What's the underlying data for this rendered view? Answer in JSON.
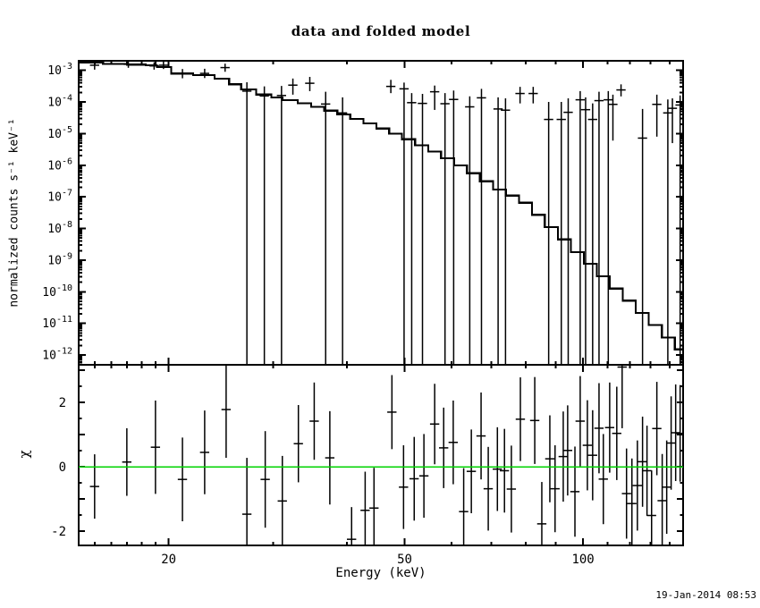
{
  "title": "data and folded model",
  "timestamp": "19-Jan-2014 08:53",
  "chart_data": {
    "type": "scatter",
    "title": "data and folded model",
    "subtitle": "",
    "legend": "none",
    "grid": false,
    "x_axis": {
      "label": "Energy (keV)",
      "scale": "log",
      "min": 14.1,
      "max": 147.5,
      "major_ticks": [
        {
          "value": 20,
          "label": "20"
        },
        {
          "value": 50,
          "label": "50"
        },
        {
          "value": 100,
          "label": "100"
        }
      ],
      "minor_ticks": [
        15,
        16,
        17,
        18,
        19,
        30,
        40,
        60,
        70,
        80,
        90,
        110,
        120,
        130,
        140
      ]
    },
    "top_panel": {
      "ylabel": "normalized counts s⁻¹ keV⁻¹",
      "yscale": "log",
      "ymin": 4.9e-13,
      "ymax": 0.002,
      "ytick_labels": [
        {
          "value": 0.001,
          "label": "10^-3"
        },
        {
          "value": 0.0001,
          "label": "10^-4"
        },
        {
          "value": 1e-05,
          "label": "10^-5"
        },
        {
          "value": 1e-06,
          "label": "10^-6"
        },
        {
          "value": 1e-07,
          "label": "10^-7"
        },
        {
          "value": 1e-08,
          "label": "10^-8"
        },
        {
          "value": 1e-09,
          "label": "10^-9"
        },
        {
          "value": 1e-10,
          "label": "10^-10"
        },
        {
          "value": 1e-11,
          "label": "10^-11"
        },
        {
          "value": 1e-12,
          "label": "10^-12"
        }
      ],
      "model_color": "#000000",
      "model_steps": [
        [
          14.1,
          0.00175
        ],
        [
          15.5,
          0.0016
        ],
        [
          17.0,
          0.00152
        ],
        [
          18.3,
          0.00145
        ],
        [
          19.1,
          0.00128
        ],
        [
          20.2,
          0.00079
        ],
        [
          22.0,
          0.0007
        ],
        [
          23.9,
          0.00054
        ],
        [
          25.3,
          0.00036
        ],
        [
          26.5,
          0.00025
        ],
        [
          28.1,
          0.000172
        ],
        [
          29.8,
          0.00014
        ],
        [
          31.1,
          0.000115
        ],
        [
          33.0,
          9e-05
        ],
        [
          34.8,
          7e-05
        ],
        [
          36.6,
          5.3e-05
        ],
        [
          38.5,
          4e-05
        ],
        [
          40.5,
          2.9e-05
        ],
        [
          42.6,
          2.1e-05
        ],
        [
          44.8,
          1.45e-05
        ],
        [
          47.1,
          1e-05
        ],
        [
          49.5,
          6.6e-06
        ],
        [
          52.1,
          4.3e-06
        ],
        [
          54.8,
          2.7e-06
        ],
        [
          57.6,
          1.65e-06
        ],
        [
          60.6,
          9.8e-07
        ],
        [
          63.7,
          5.6e-07
        ],
        [
          67.0,
          3.1e-07
        ],
        [
          70.5,
          1.7e-07
        ],
        [
          74.1,
          1.1e-07
        ],
        [
          78.0,
          6.5e-08
        ],
        [
          82.0,
          2.7e-08
        ],
        [
          86.2,
          1.1e-08
        ],
        [
          90.7,
          4.5e-09
        ],
        [
          95.4,
          1.8e-09
        ],
        [
          100.3,
          7.6e-10
        ],
        [
          105.5,
          3.1e-10
        ],
        [
          111.0,
          1.26e-10
        ],
        [
          116.7,
          5.2e-11
        ],
        [
          122.7,
          2.15e-11
        ],
        [
          129.1,
          8.8e-12
        ],
        [
          135.8,
          3.6e-12
        ],
        [
          142.8,
          1.5e-12
        ],
        [
          147.5,
          8.3e-13
        ]
      ],
      "data_points_note": "fields: energy_keV, value, err_low(null=extends to panel bottom), err_high",
      "data_points": [
        [
          15.0,
          0.00145,
          0.00105,
          0.00195
        ],
        [
          17.1,
          0.00155,
          0.0012,
          0.00198
        ],
        [
          18.9,
          0.00138,
          0.00105,
          0.0018
        ],
        [
          19.6,
          0.00145,
          0.0011,
          0.0019
        ],
        [
          21.1,
          0.00079,
          0.00056,
          0.0011
        ],
        [
          23.0,
          0.0008,
          0.00057,
          0.00112
        ],
        [
          24.9,
          0.00122,
          0.0009,
          0.00162
        ],
        [
          27.1,
          0.00022,
          null,
          0.00042
        ],
        [
          29.0,
          0.000155,
          null,
          0.00031
        ],
        [
          31.0,
          0.00016,
          null,
          0.00032
        ],
        [
          32.4,
          0.00034,
          0.00017,
          0.00055
        ],
        [
          34.6,
          0.00039,
          0.00022,
          0.00062
        ],
        [
          36.8,
          8.6e-05,
          null,
          0.00021
        ],
        [
          39.3,
          4.5e-05,
          null,
          0.00014
        ],
        [
          47.4,
          0.00031,
          0.00019,
          0.0005
        ],
        [
          49.9,
          0.00026,
          null,
          0.00041
        ],
        [
          51.4,
          9.5e-05,
          null,
          0.00019
        ],
        [
          53.6,
          9e-05,
          null,
          0.00018
        ],
        [
          56.2,
          0.00021,
          5.6e-05,
          0.00033
        ],
        [
          58.5,
          8.8e-05,
          null,
          0.00019
        ],
        [
          60.5,
          0.00012,
          null,
          0.00023
        ],
        [
          64.4,
          7e-05,
          null,
          0.00015
        ],
        [
          67.4,
          0.000135,
          null,
          0.00026
        ],
        [
          71.9,
          6e-05,
          null,
          0.00014
        ],
        [
          74.0,
          5.5e-05,
          null,
          0.00013
        ],
        [
          78.3,
          0.000185,
          9e-05,
          0.0003
        ],
        [
          82.4,
          0.000185,
          9e-05,
          0.0003
        ],
        [
          87.5,
          2.8e-05,
          null,
          0.0001
        ],
        [
          91.9,
          2.8e-05,
          null,
          0.0001
        ],
        [
          94.4,
          4.7e-05,
          null,
          0.00013
        ],
        [
          98.9,
          0.000117,
          null,
          0.00022
        ],
        [
          101.0,
          5.7e-05,
          null,
          0.00014
        ],
        [
          103.8,
          2.8e-05,
          null,
          9e-05
        ],
        [
          106.4,
          0.00011,
          null,
          0.00021
        ],
        [
          110.3,
          0.000117,
          null,
          0.00022
        ],
        [
          112.3,
          8.4e-05,
          6e-06,
          0.00017
        ],
        [
          115.9,
          0.00024,
          0.00015,
          0.00036
        ],
        [
          126.0,
          7.2e-06,
          null,
          6e-05
        ],
        [
          133.2,
          8.4e-05,
          8e-06,
          0.00017
        ],
        [
          139.0,
          4.5e-05,
          null,
          0.00012
        ],
        [
          141.5,
          6.3e-05,
          5e-06,
          0.00013
        ],
        [
          145.8,
          8e-05,
          null,
          0.00016
        ]
      ]
    },
    "bottom_panel": {
      "ylabel": "χ",
      "yscale": "linear",
      "ymin": -2.44,
      "ymax": 3.17,
      "major_ticks": [
        {
          "value": -2,
          "label": "-2"
        },
        {
          "value": 0,
          "label": "0"
        },
        {
          "value": 2,
          "label": "2"
        }
      ],
      "integer_ticks": [
        -2,
        -1,
        0,
        1,
        2,
        3
      ],
      "minor_tick_step": 0.5,
      "zero_line_color": "#00d300",
      "points_note": "fields: energy_keV, chi, err_down, err_up",
      "points": [
        [
          15.0,
          -0.61,
          1.0,
          1.0
        ],
        [
          17.0,
          0.15,
          1.05,
          1.05
        ],
        [
          19.0,
          0.61,
          1.45,
          1.45
        ],
        [
          21.1,
          -0.39,
          1.3,
          1.3
        ],
        [
          23.0,
          0.45,
          1.3,
          1.3
        ],
        [
          25.0,
          1.78,
          1.5,
          1.55
        ],
        [
          27.1,
          -1.47,
          1.35,
          1.75
        ],
        [
          29.1,
          -0.39,
          1.5,
          1.5
        ],
        [
          31.1,
          -1.06,
          1.4,
          1.4
        ],
        [
          33.1,
          0.72,
          1.2,
          1.2
        ],
        [
          35.2,
          1.42,
          1.2,
          1.2
        ],
        [
          37.4,
          0.28,
          1.45,
          1.45
        ],
        [
          40.7,
          -2.25,
          1.0,
          1.0
        ],
        [
          42.9,
          -1.35,
          1.2,
          1.2
        ],
        [
          44.4,
          -1.28,
          1.25,
          1.25
        ],
        [
          47.6,
          1.7,
          1.15,
          1.15
        ],
        [
          49.8,
          -0.63,
          1.3,
          1.3
        ],
        [
          51.9,
          -0.37,
          1.3,
          1.3
        ],
        [
          53.9,
          -0.28,
          1.3,
          1.3
        ],
        [
          56.2,
          1.33,
          1.25,
          1.25
        ],
        [
          58.2,
          0.59,
          1.25,
          1.25
        ],
        [
          60.4,
          0.76,
          1.3,
          1.3
        ],
        [
          62.9,
          -1.39,
          1.35,
          1.35
        ],
        [
          64.8,
          -0.14,
          1.3,
          1.3
        ],
        [
          67.3,
          0.96,
          1.35,
          1.35
        ],
        [
          69.2,
          -0.68,
          1.3,
          1.3
        ],
        [
          71.7,
          -0.07,
          1.3,
          1.3
        ],
        [
          73.7,
          -0.12,
          1.3,
          1.3
        ],
        [
          75.7,
          -0.69,
          1.35,
          1.35
        ],
        [
          78.4,
          1.48,
          1.3,
          1.3
        ],
        [
          82.9,
          1.44,
          1.35,
          1.35
        ],
        [
          85.2,
          -1.77,
          1.3,
          1.3
        ],
        [
          87.9,
          0.25,
          1.35,
          1.35
        ],
        [
          89.7,
          -0.68,
          1.35,
          1.35
        ],
        [
          92.6,
          0.32,
          1.4,
          1.4
        ],
        [
          94.2,
          0.51,
          1.4,
          1.4
        ],
        [
          96.9,
          -0.77,
          1.4,
          1.4
        ],
        [
          98.9,
          1.42,
          1.4,
          1.4
        ],
        [
          101.7,
          0.67,
          1.4,
          1.4
        ],
        [
          103.8,
          0.36,
          1.4,
          1.4
        ],
        [
          106.4,
          1.2,
          1.4,
          1.4
        ],
        [
          108.2,
          -0.38,
          1.4,
          1.4
        ],
        [
          110.9,
          1.22,
          1.4,
          1.4
        ],
        [
          114.0,
          1.04,
          1.45,
          1.45
        ],
        [
          116.4,
          3.1,
          1.9,
          1.0
        ],
        [
          118.4,
          -0.83,
          1.4,
          1.4
        ],
        [
          120.9,
          -1.14,
          1.4,
          1.4
        ],
        [
          123.5,
          -0.58,
          1.4,
          1.4
        ],
        [
          126.0,
          0.16,
          1.4,
          1.4
        ],
        [
          128.2,
          -0.12,
          1.4,
          1.4
        ],
        [
          130.5,
          -1.51,
          1.4,
          1.4
        ],
        [
          133.2,
          1.19,
          1.45,
          1.45
        ],
        [
          136.0,
          -1.05,
          1.45,
          1.45
        ],
        [
          138.4,
          -0.63,
          1.45,
          1.45
        ],
        [
          140.8,
          0.74,
          1.45,
          1.45
        ],
        [
          143.3,
          1.06,
          1.5,
          1.5
        ],
        [
          145.8,
          1.04,
          1.5,
          1.5
        ]
      ]
    },
    "marker_halfwidth_frac": 0.018,
    "line_color": "#000000",
    "background_color": "#ffffff"
  }
}
